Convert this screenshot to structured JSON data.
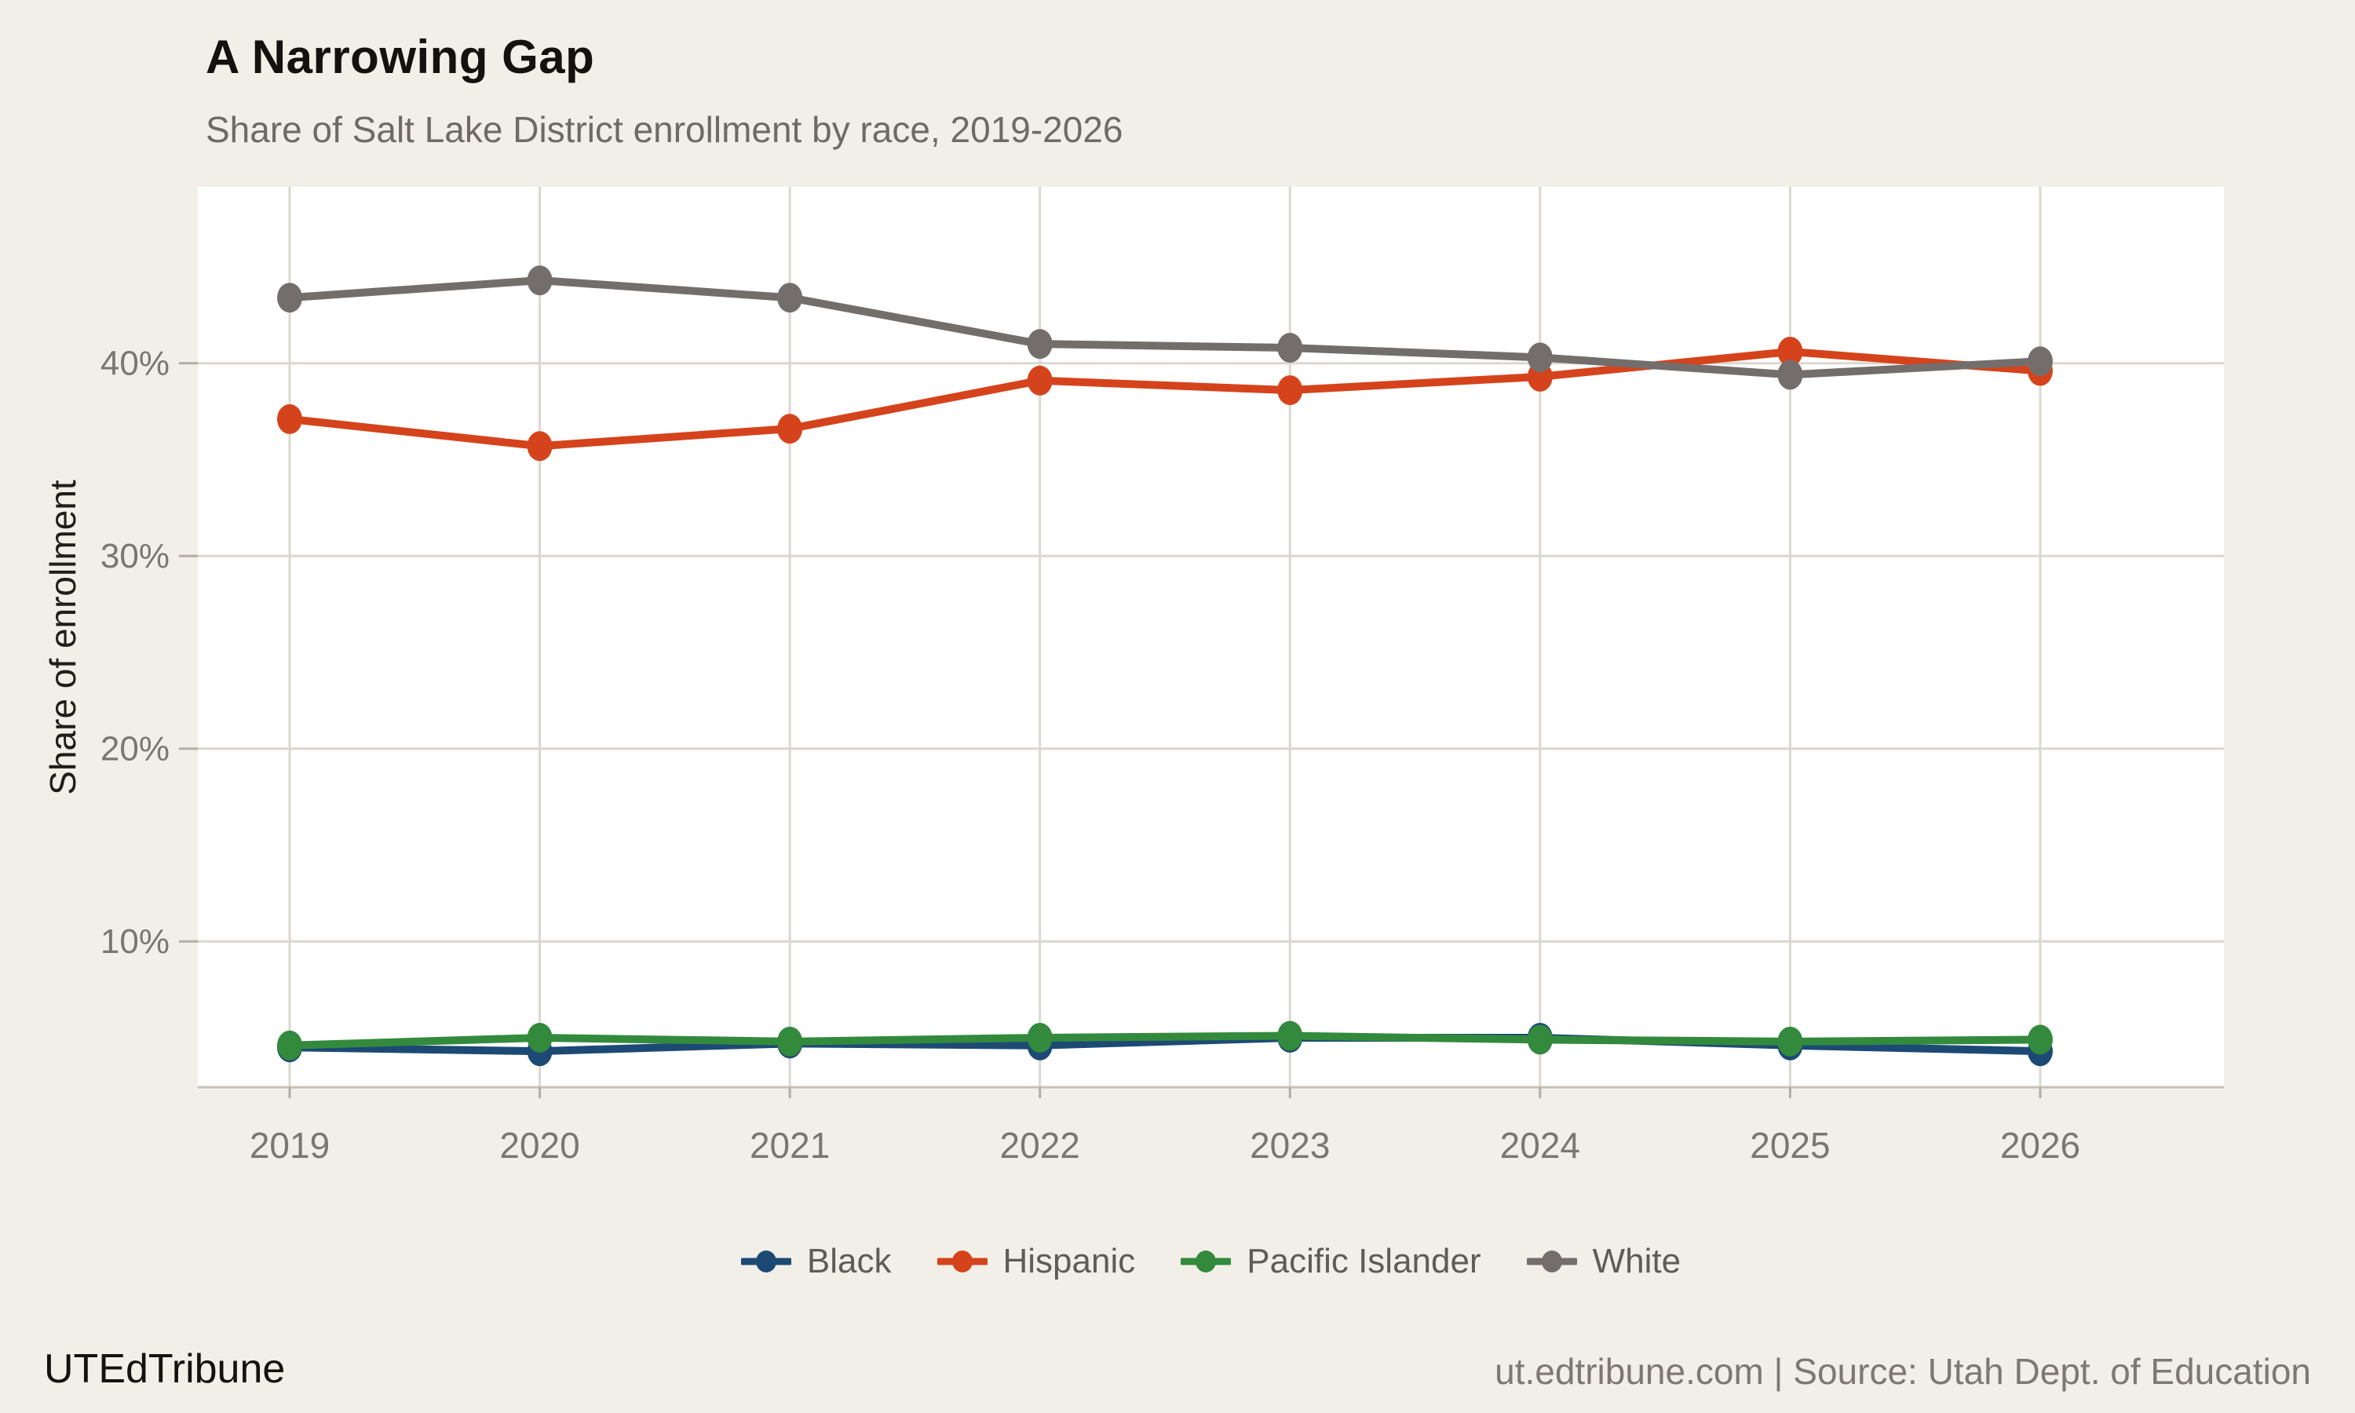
{
  "header": {
    "title": "A Narrowing Gap",
    "subtitle": "Share of Salt Lake District enrollment by race, 2019-2026"
  },
  "chart_data": {
    "type": "line",
    "x": [
      2019,
      2020,
      2021,
      2022,
      2023,
      2024,
      2025,
      2026
    ],
    "x_labels": [
      "2019",
      "2020",
      "2021",
      "2022",
      "2023",
      "2024",
      "2025",
      "2026"
    ],
    "series": [
      {
        "name": "Black",
        "color": "#1c4a74",
        "values": [
          4.5,
          4.3,
          4.7,
          4.6,
          5.0,
          5.0,
          4.6,
          4.3
        ]
      },
      {
        "name": "Hispanic",
        "color": "#d5431c",
        "values": [
          37.1,
          35.7,
          36.6,
          39.1,
          38.6,
          39.3,
          40.6,
          39.6
        ]
      },
      {
        "name": "Pacific Islander",
        "color": "#338a3d",
        "values": [
          4.6,
          5.0,
          4.8,
          5.0,
          5.1,
          4.9,
          4.8,
          4.9
        ]
      },
      {
        "name": "White",
        "color": "#736e6b",
        "values": [
          43.4,
          44.3,
          43.4,
          41.0,
          40.8,
          40.3,
          39.4,
          40.1
        ]
      }
    ],
    "title": "A Narrowing Gap",
    "subtitle": "Share of Salt Lake District enrollment by race, 2019-2026",
    "xlabel": "",
    "ylabel": "Share of enrollment",
    "y_ticks": [
      {
        "value": 10,
        "label": "10%"
      },
      {
        "value": 20,
        "label": "20%"
      },
      {
        "value": 30,
        "label": "30%"
      },
      {
        "value": 40,
        "label": "40%"
      }
    ],
    "ylim": [
      2.4,
      49.2
    ],
    "grid": true,
    "legend_position": "bottom"
  },
  "legend": {
    "entries": [
      "Black",
      "Hispanic",
      "Pacific Islander",
      "White"
    ]
  },
  "footer": {
    "brand": "UTEdTribune",
    "source": "ut.edtribune.com | Source: Utah Dept. of Education"
  },
  "colors": {
    "background": "#f2efe8",
    "panel": "#ffffff",
    "grid": "#dcd7cf",
    "axis_line": "#c6c0b7",
    "tick_mark": "#b3ada4",
    "tick_label": "#7b7671",
    "title": "#14110e",
    "subtitle": "#6f6a64",
    "y_axis_title": "#211d1a",
    "legend_text": "#5f5b56",
    "footer_brand": "#14110e",
    "footer_source": "#7d7872"
  }
}
